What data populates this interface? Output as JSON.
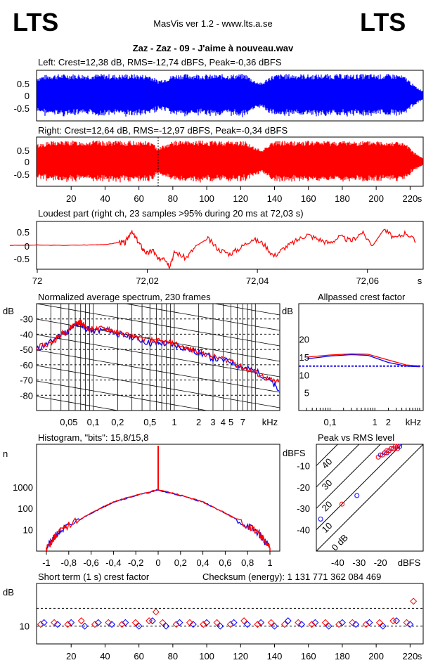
{
  "header": {
    "logo_left": "LTS",
    "logo_right": "LTS",
    "app": "MasVis ver 1.2 - www.lts.a.se",
    "file_title": "Zaz - Zaz - 09 - J'aime à nouveau.wav"
  },
  "colors": {
    "left": "#0000ff",
    "right": "#ff0000",
    "grid": "#000000"
  },
  "chart_data": [
    {
      "id": "waveform-left",
      "type": "area",
      "title": "Left: Crest=12,38 dB, RMS=-12,74 dBFS, Peak=-0,36 dBFS",
      "ylim": [
        -1,
        1
      ],
      "y_ticks": [
        "0.5",
        "0",
        "-0.5"
      ],
      "x_range_s": [
        0,
        224
      ],
      "series": [
        {
          "color": "#0000ff",
          "envelope": [
            0.75,
            0.82,
            0.85,
            0.85,
            0.86,
            0.86,
            0.85,
            0.84,
            0.86,
            0.85,
            0.83,
            0.86,
            0.85,
            0.84,
            0.83,
            0.62,
            0.7,
            0.84,
            0.86,
            0.85,
            0.86,
            0.84,
            0.83,
            0.85,
            0.84,
            0.86,
            0.85,
            0.62,
            0.5,
            0.78,
            0.85,
            0.86,
            0.85,
            0.86,
            0.84,
            0.85,
            0.86,
            0.85,
            0.86,
            0.84,
            0.85,
            0.86,
            0.85,
            0.84,
            0.86,
            0.85,
            0.72,
            0.4,
            0.2
          ]
        }
      ]
    },
    {
      "id": "waveform-right",
      "type": "area",
      "title": "Right: Crest=12,64 dB, RMS=-12,97 dBFS, Peak=-0,34 dBFS",
      "ylim": [
        -1,
        1
      ],
      "y_ticks": [
        "0.5",
        "0",
        "-0.5"
      ],
      "x_ticks": [
        "20",
        "40",
        "60",
        "80",
        "100",
        "120",
        "140",
        "160",
        "180",
        "200",
        "220"
      ],
      "x_unit": "s",
      "series": [
        {
          "color": "#ff0000",
          "envelope": [
            0.72,
            0.8,
            0.84,
            0.85,
            0.86,
            0.85,
            0.84,
            0.86,
            0.85,
            0.84,
            0.85,
            0.84,
            0.86,
            0.85,
            0.84,
            0.6,
            0.72,
            0.85,
            0.86,
            0.84,
            0.86,
            0.85,
            0.84,
            0.85,
            0.86,
            0.84,
            0.85,
            0.6,
            0.48,
            0.8,
            0.85,
            0.86,
            0.84,
            0.86,
            0.85,
            0.84,
            0.86,
            0.85,
            0.84,
            0.86,
            0.85,
            0.84,
            0.86,
            0.85,
            0.84,
            0.85,
            0.7,
            0.38,
            0.15
          ]
        }
      ]
    },
    {
      "id": "loudest-part",
      "type": "line",
      "title": "Loudest part (right ch, 23 samples >95% during 20 ms at 72,03 s)",
      "x_range_s": [
        72.005,
        72.075
      ],
      "ylim": [
        -1,
        1
      ],
      "y_ticks": [
        "0.5",
        "0",
        "-0.5"
      ],
      "x_ticks": [
        "72",
        "72,02",
        "72,04",
        "72,06",
        "s"
      ],
      "series": [
        {
          "color": "#ff0000",
          "x": [
            72.0,
            72.005,
            72.01,
            72.015,
            72.018,
            72.02,
            72.021,
            72.022,
            72.023,
            72.024,
            72.025,
            72.026,
            72.027,
            72.028,
            72.029,
            72.03,
            72.032,
            72.034,
            72.036,
            72.038,
            72.04,
            72.042,
            72.044,
            72.046,
            72.048,
            72.05,
            72.052,
            72.054,
            72.056,
            72.058,
            72.06,
            72.062,
            72.064,
            72.066,
            72.068,
            72.07,
            72.072,
            72.074
          ],
          "y": [
            0.0,
            0.01,
            0.0,
            0.02,
            0.05,
            0.15,
            0.1,
            0.65,
            0.3,
            -0.1,
            -0.4,
            -0.2,
            -0.7,
            -0.5,
            -0.95,
            -0.3,
            -0.6,
            0.0,
            0.3,
            -0.2,
            -0.4,
            -0.1,
            0.3,
            0.1,
            -0.5,
            -0.1,
            0.2,
            0.5,
            0.3,
            0.1,
            0.4,
            0.2,
            0.6,
            0.0,
            0.75,
            0.3,
            0.6,
            0.1
          ]
        }
      ]
    },
    {
      "id": "spectrum",
      "type": "line",
      "title": "Normalized average spectrum, 230 frames",
      "y_unit": "dB",
      "y_ticks": [
        "-30",
        "-40",
        "-50",
        "-60",
        "-70",
        "-80"
      ],
      "x_ticks": [
        "0,05",
        "0,1",
        "0,2",
        "0,5",
        "1",
        "2",
        "3",
        "4",
        "5",
        "7",
        "kHz"
      ],
      "xlim_khz": [
        0.02,
        20
      ],
      "ylim": [
        -90,
        -20
      ],
      "series": [
        {
          "color": "#0000ff",
          "x": [
            0.02,
            0.03,
            0.04,
            0.05,
            0.06,
            0.07,
            0.08,
            0.1,
            0.15,
            0.2,
            0.3,
            0.5,
            0.7,
            1,
            1.5,
            2,
            3,
            5,
            7,
            10,
            15,
            20
          ],
          "y": [
            -50,
            -45,
            -40,
            -38,
            -34,
            -33,
            -36,
            -38,
            -37,
            -40,
            -42,
            -46,
            -46,
            -47,
            -50,
            -52,
            -56,
            -58,
            -62,
            -64,
            -70,
            -78
          ]
        },
        {
          "color": "#ff0000",
          "x": [
            0.02,
            0.03,
            0.04,
            0.05,
            0.06,
            0.07,
            0.08,
            0.1,
            0.15,
            0.2,
            0.3,
            0.5,
            0.7,
            1,
            1.5,
            2,
            3,
            5,
            7,
            10,
            15,
            20
          ],
          "y": [
            -49,
            -46,
            -40,
            -37,
            -33,
            -32,
            -35,
            -37,
            -36,
            -39,
            -41,
            -44,
            -45,
            -46,
            -50,
            -51,
            -55,
            -57,
            -62,
            -65,
            -70,
            -72
          ]
        }
      ]
    },
    {
      "id": "allpassed-crest",
      "type": "line",
      "title": "Allpassed crest factor",
      "y_unit": "dB",
      "y_ticks": [
        "20",
        "15",
        "10",
        "5"
      ],
      "x_ticks": [
        "0,1",
        "1",
        "2",
        "kHz"
      ],
      "ylim": [
        0,
        30
      ],
      "series": [
        {
          "color": "#0000ff",
          "x": [
            0.03,
            0.1,
            0.3,
            0.7,
            2,
            5,
            10
          ],
          "y": [
            14.5,
            15.3,
            15.7,
            15.5,
            13.5,
            12.5,
            12.3
          ]
        },
        {
          "color": "#ff0000",
          "x": [
            0.03,
            0.1,
            0.3,
            0.7,
            2,
            5,
            10
          ],
          "y": [
            15.0,
            15.6,
            15.9,
            15.8,
            14.2,
            12.8,
            12.5
          ]
        }
      ],
      "reference_lines": [
        12.38,
        12.64
      ]
    },
    {
      "id": "histogram",
      "type": "line",
      "title": "Histogram, \"bits\": 15,8/15,8",
      "y_unit": "n",
      "y_ticks": [
        "1000",
        "100",
        "10"
      ],
      "x_ticks": [
        "-1",
        "-0,8",
        "-0,6",
        "-0,4",
        "-0,2",
        "0",
        "0,2",
        "0,4",
        "0,6",
        "0,8",
        "1"
      ],
      "ylog": true,
      "ylim": [
        1,
        100000
      ],
      "series": [
        {
          "color": "#0000ff",
          "x": [
            -1,
            -0.95,
            -0.9,
            -0.8,
            -0.6,
            -0.4,
            -0.2,
            0,
            0.2,
            0.4,
            0.6,
            0.8,
            0.9,
            0.95,
            1
          ],
          "y": [
            1.5,
            3,
            7,
            15,
            60,
            200,
            400,
            700,
            400,
            200,
            60,
            15,
            7,
            3,
            1.5
          ]
        },
        {
          "color": "#ff0000",
          "x": [
            -1,
            -0.95,
            -0.9,
            -0.8,
            -0.6,
            -0.4,
            -0.2,
            0,
            0.2,
            0.4,
            0.6,
            0.8,
            0.9,
            0.95,
            1
          ],
          "y": [
            1.3,
            3,
            7,
            16,
            60,
            200,
            420,
            750,
            420,
            200,
            60,
            16,
            7,
            3,
            1.3
          ]
        }
      ]
    },
    {
      "id": "peak-vs-rms",
      "type": "scatter",
      "title": "Peak vs RMS level",
      "y_unit": "dBFS",
      "x_unit": "dBFS",
      "y_ticks": [
        "-10",
        "-20",
        "-30",
        "-40"
      ],
      "x_ticks": [
        "-40",
        "-30",
        "-20",
        "dBFS"
      ],
      "diagonal_labels": [
        "40",
        "30",
        "20",
        "10",
        "0 dB"
      ],
      "xlim": [
        -50,
        0
      ],
      "ylim": [
        -50,
        0
      ],
      "series": [
        {
          "color": "#0000ff",
          "x": [
            -20,
            -18,
            -17,
            -16,
            -15,
            -14,
            -13,
            -12,
            -12,
            -11,
            -31,
            -48
          ],
          "y": [
            -5,
            -4,
            -4,
            -3,
            -2,
            -2,
            -1,
            -1,
            -2,
            -1,
            -24,
            -35
          ]
        },
        {
          "color": "#ff0000",
          "x": [
            -21,
            -19,
            -18,
            -17,
            -16,
            -15,
            -14,
            -13,
            -12,
            -12,
            -38
          ],
          "y": [
            -6,
            -5,
            -4,
            -3,
            -3,
            -2,
            -2,
            -1,
            -1,
            -2,
            -28
          ]
        }
      ]
    },
    {
      "id": "short-term-crest",
      "type": "scatter",
      "title": "Short term (1 s) crest factor",
      "checksum": "Checksum (energy):  1 131 771 362 084 469",
      "y_unit": "dB",
      "y_ticks": [
        "10"
      ],
      "x_ticks": [
        "20",
        "40",
        "60",
        "80",
        "100",
        "120",
        "140",
        "160",
        "180",
        "200",
        "220",
        "s"
      ],
      "xlim": [
        0,
        224
      ],
      "ylim": [
        5,
        22
      ],
      "reference_lines": [
        15,
        10
      ],
      "series": [
        {
          "color": "#0000ff",
          "x": [
            4,
            12,
            20,
            28,
            36,
            44,
            52,
            60,
            68,
            76,
            84,
            92,
            100,
            108,
            116,
            124,
            132,
            140,
            148,
            156,
            164,
            172,
            180,
            188,
            196,
            204,
            212,
            220
          ],
          "y": [
            11,
            10.5,
            11,
            10,
            11,
            10.5,
            11,
            10,
            11.5,
            10,
            11,
            10.5,
            11,
            10,
            11,
            10.5,
            11,
            10,
            11.5,
            10.5,
            11,
            10,
            11,
            10.5,
            11,
            10,
            11.5,
            10.5
          ]
        },
        {
          "color": "#ff0000",
          "x": [
            2,
            10,
            18,
            26,
            34,
            42,
            50,
            58,
            66,
            70,
            74,
            82,
            90,
            98,
            106,
            114,
            122,
            130,
            138,
            146,
            154,
            162,
            170,
            178,
            186,
            194,
            202,
            210,
            218,
            222
          ],
          "y": [
            10.5,
            11,
            10.5,
            11.5,
            10.5,
            11,
            10.5,
            11,
            11.5,
            14,
            11,
            10.5,
            11,
            10.5,
            11,
            10.5,
            11.5,
            10.5,
            11,
            10.5,
            11,
            10.5,
            11,
            10.5,
            11,
            10.5,
            11,
            11.5,
            11,
            17
          ]
        }
      ]
    }
  ]
}
